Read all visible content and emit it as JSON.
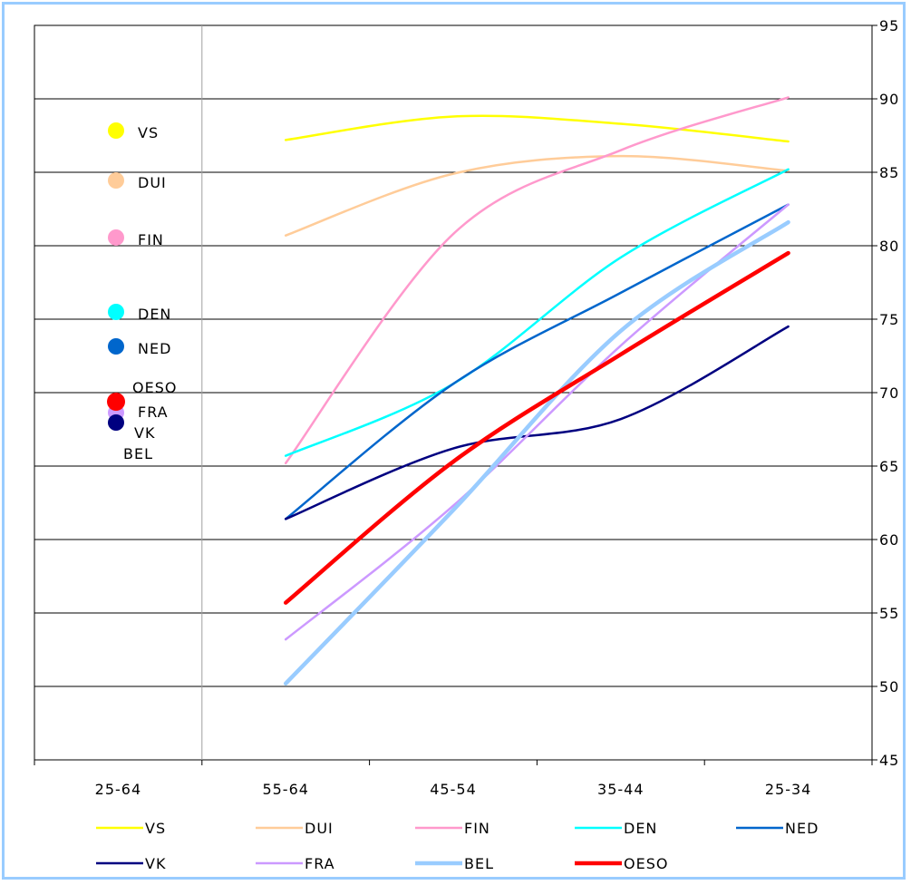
{
  "chart_data": {
    "type": "line",
    "categories": [
      "25-64",
      "55-64",
      "45-54",
      "35-44",
      "25-34"
    ],
    "y_axis": {
      "ylim": [
        45,
        95
      ],
      "ticks": [
        45,
        50,
        55,
        60,
        65,
        70,
        75,
        80,
        85,
        90,
        95
      ],
      "position": "right"
    },
    "grid": "horizontal",
    "legend_position": "bottom",
    "series": [
      {
        "name": "VS",
        "color": "#ffff00",
        "marker_color": "#ffff00",
        "values": [
          null,
          87.2,
          88.8,
          88.3,
          87.1
        ]
      },
      {
        "name": "DUI",
        "color": "#ffcc99",
        "marker_color": "#ffcc99",
        "values": [
          null,
          80.7,
          84.9,
          86.1,
          85.1
        ]
      },
      {
        "name": "FIN",
        "color": "#ff99cc",
        "marker_color": "#ff99cc",
        "values": [
          null,
          65.2,
          80.8,
          86.5,
          90.1
        ]
      },
      {
        "name": "DEN",
        "color": "#00ffff",
        "marker_color": "#00ffff",
        "values": [
          null,
          65.7,
          70.6,
          79.2,
          85.2
        ]
      },
      {
        "name": "NED",
        "color": "#0066cc",
        "marker_color": "#0066cc",
        "values": [
          null,
          61.4,
          70.6,
          76.8,
          82.8
        ]
      },
      {
        "name": "VK",
        "color": "#000080",
        "marker_color": "#000080",
        "values": [
          null,
          61.4,
          66.2,
          68.2,
          74.5
        ]
      },
      {
        "name": "FRA",
        "color": "#cc99ff",
        "marker_color": "#cc99ff",
        "values": [
          null,
          53.2,
          62.3,
          73.2,
          82.8
        ]
      },
      {
        "name": "BEL",
        "color": "#99ccff",
        "marker_color": "#99ccff",
        "values": [
          null,
          50.2,
          62.0,
          74.2,
          81.6
        ]
      },
      {
        "name": "OESO",
        "color": "#ff0000",
        "marker_color": "#ff0000",
        "values": [
          null,
          55.7,
          65.3,
          72.6,
          79.5
        ]
      }
    ],
    "inline_labels": [
      {
        "text": "VS"
      },
      {
        "text": "DUI"
      },
      {
        "text": "FIN"
      },
      {
        "text": "DEN"
      },
      {
        "text": "NED"
      },
      {
        "text": "OESO"
      },
      {
        "text": "FRA"
      },
      {
        "text": "VK"
      },
      {
        "text": "BEL"
      }
    ],
    "legend_rows": [
      [
        "VS",
        "DUI",
        "FIN",
        "DEN",
        "NED"
      ],
      [
        "VK",
        "FRA",
        "BEL",
        "OESO"
      ]
    ]
  }
}
